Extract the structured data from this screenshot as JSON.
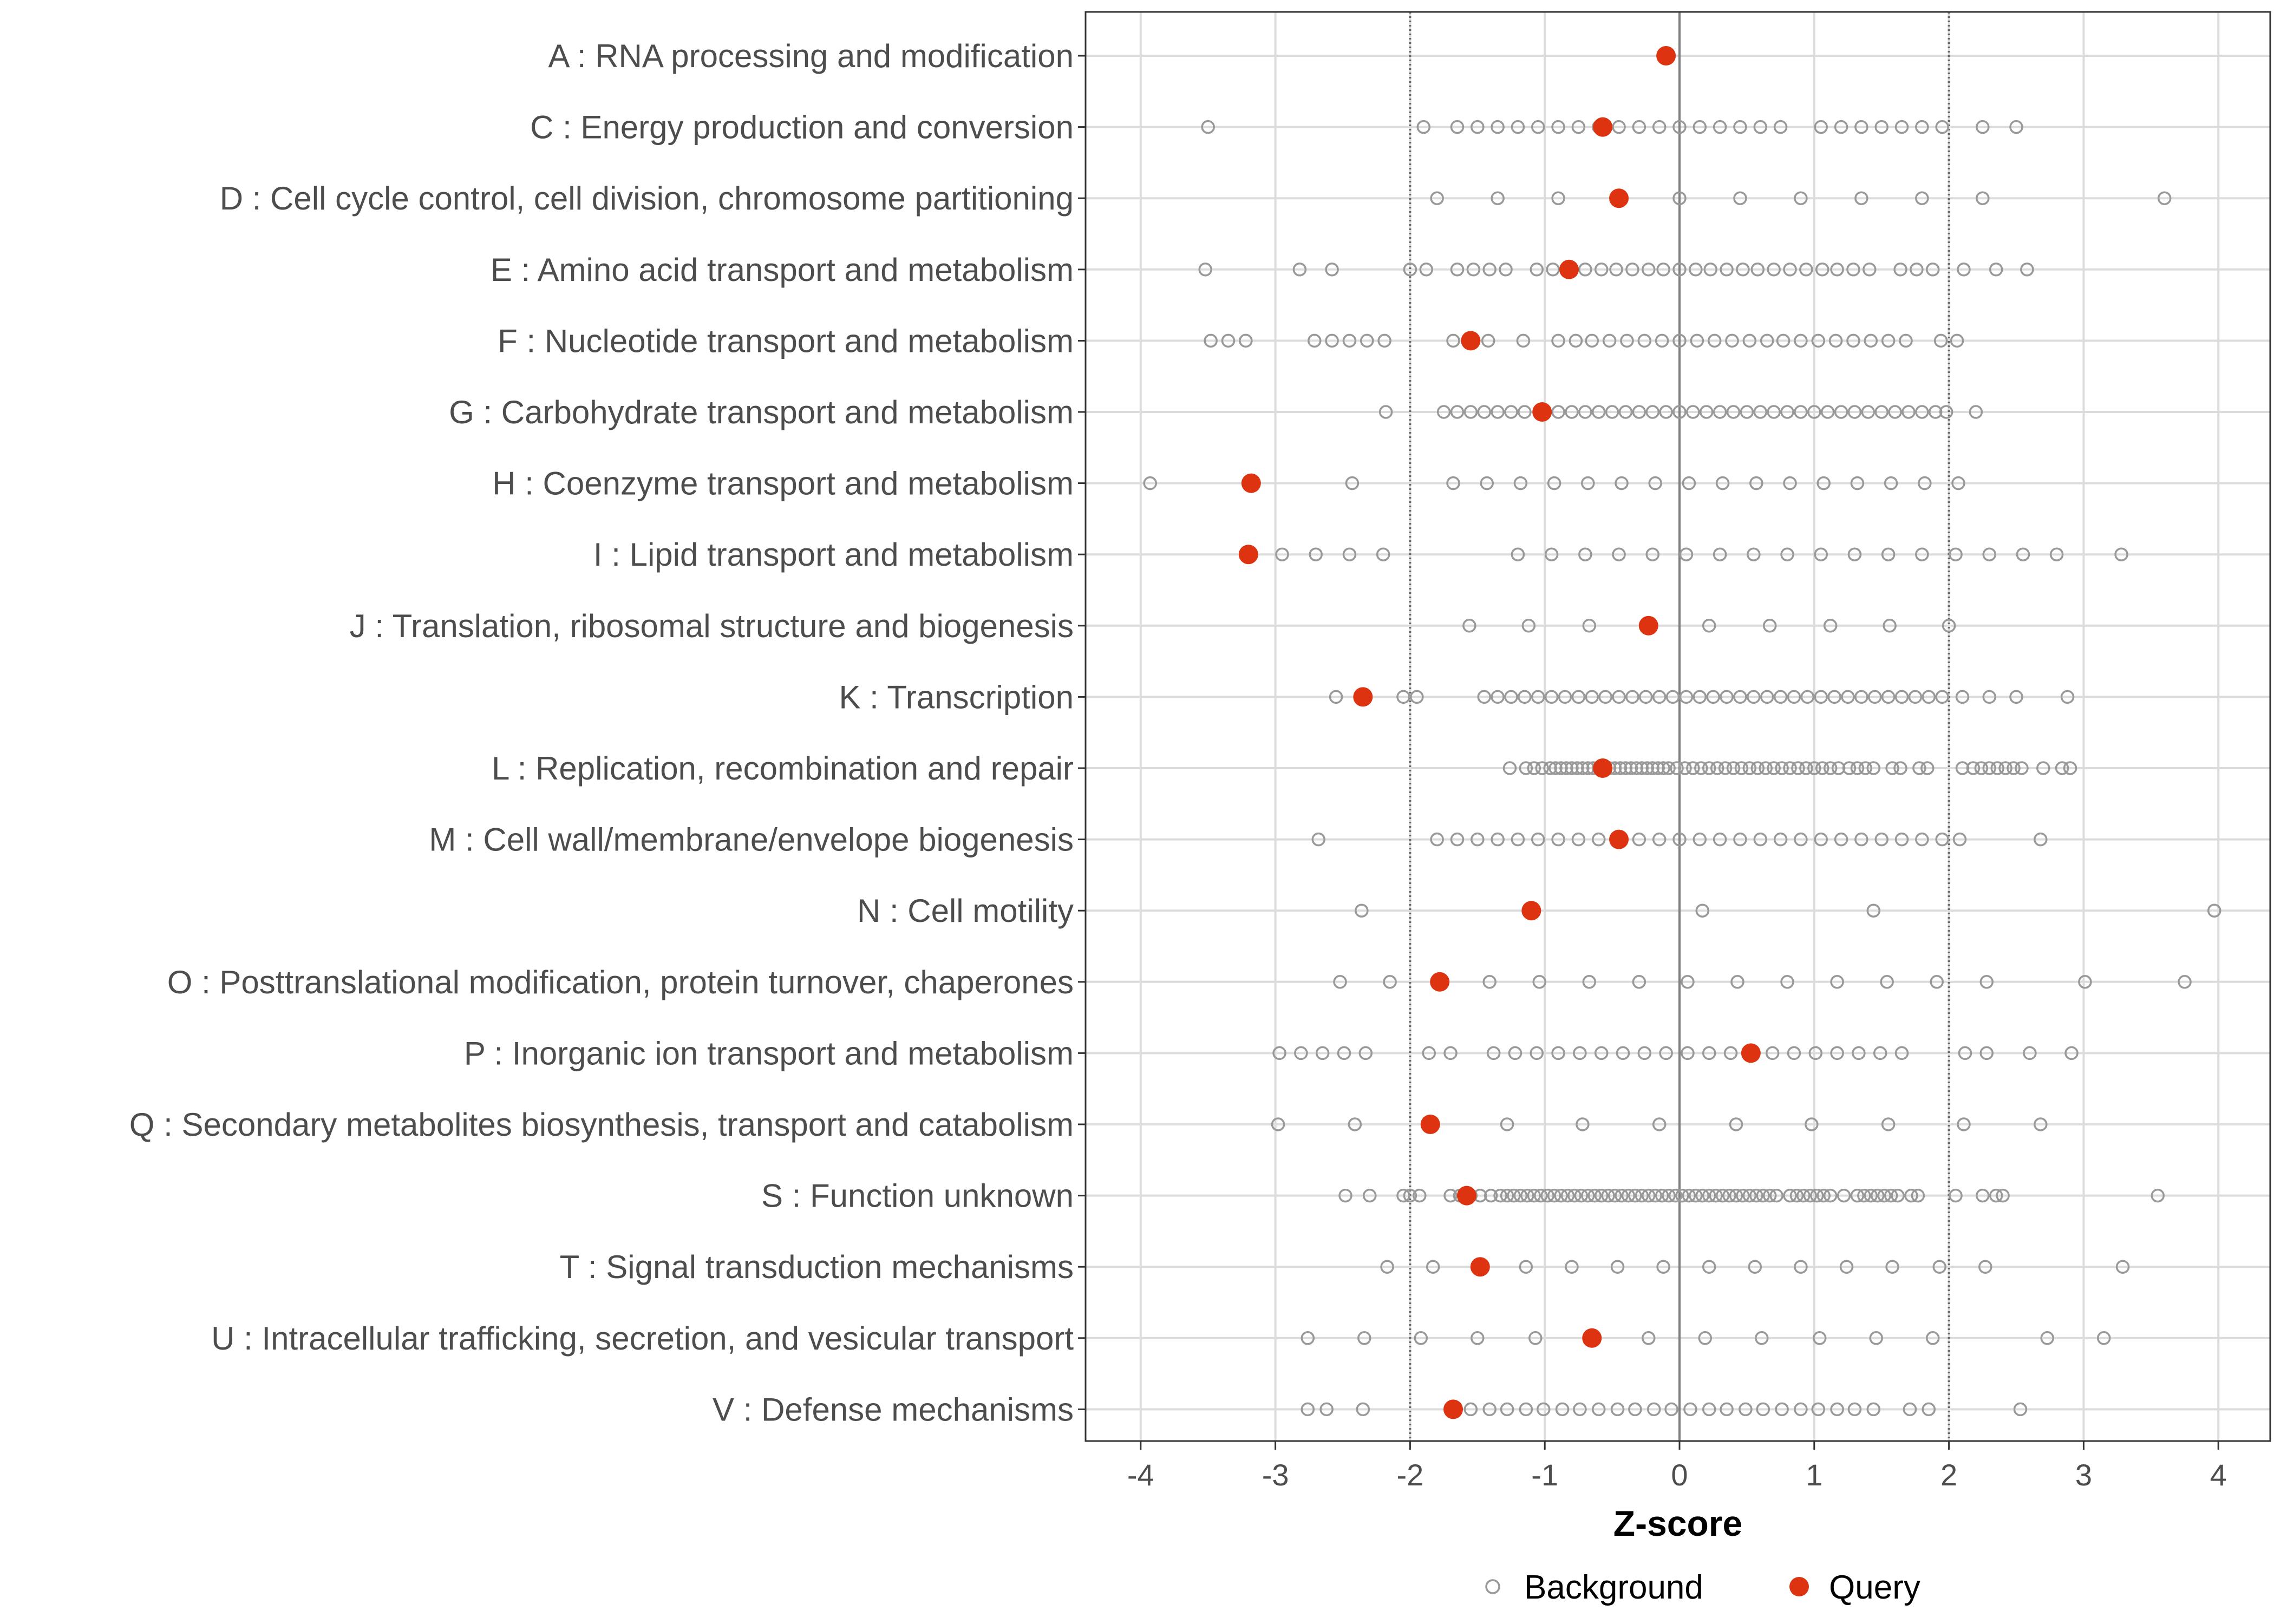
{
  "chart_data": {
    "type": "scatter",
    "title": "",
    "xlabel": "Z-score",
    "ylabel": "",
    "xlim": [
      -4.4,
      4.4
    ],
    "xticks": [
      -4,
      -3,
      -2,
      -1,
      0,
      1,
      2,
      3,
      4
    ],
    "xtick_labels": [
      "-4",
      "-3",
      "-2",
      "-1",
      "0",
      "1",
      "2",
      "3",
      "4"
    ],
    "reference_lines": [
      -2,
      0,
      2
    ],
    "grid": true,
    "legend_position": "bottom",
    "colors": {
      "background_point": "#999999",
      "query_point": "#dd3311",
      "grid": "#dcdcdc",
      "zero_line": "#7f7f7f",
      "dotted_line": "#666666",
      "panel_border": "#333333"
    },
    "series": [
      {
        "name": "Background",
        "marker": "open-circle"
      },
      {
        "name": "Query",
        "marker": "filled-circle"
      }
    ],
    "categories": [
      {
        "label": "A : RNA processing and modification",
        "query": -0.1,
        "background": []
      },
      {
        "label": "C : Energy production and conversion",
        "query": -0.57,
        "background": [
          -3.5,
          -1.9,
          -1.65,
          -1.5,
          -1.35,
          -1.2,
          -1.05,
          -0.9,
          -0.75,
          -0.6,
          -0.45,
          -0.3,
          -0.15,
          0,
          0.15,
          0.3,
          0.45,
          0.6,
          0.75,
          1.05,
          1.2,
          1.35,
          1.5,
          1.65,
          1.8,
          1.95,
          2.25,
          2.5
        ]
      },
      {
        "label": "D : Cell cycle control, cell division, chromosome partitioning",
        "query": -0.45,
        "background": [
          -1.8,
          -1.35,
          -0.9,
          0,
          0.45,
          0.9,
          1.35,
          1.8,
          2.25,
          3.6
        ]
      },
      {
        "label": "E : Amino acid transport and metabolism",
        "query": -0.82,
        "background": [
          -3.52,
          -2.82,
          -2.58,
          -2.0,
          -1.88,
          -1.65,
          -1.53,
          -1.41,
          -1.29,
          -1.06,
          -0.94,
          -0.7,
          -0.58,
          -0.47,
          -0.35,
          -0.23,
          -0.12,
          0,
          0.12,
          0.23,
          0.35,
          0.47,
          0.58,
          0.7,
          0.82,
          0.94,
          1.06,
          1.17,
          1.29,
          1.41,
          1.64,
          1.76,
          1.88,
          2.11,
          2.35,
          2.58
        ]
      },
      {
        "label": "F : Nucleotide transport and metabolism",
        "query": -1.55,
        "background": [
          -3.48,
          -3.35,
          -3.22,
          -2.71,
          -2.58,
          -2.45,
          -2.32,
          -2.19,
          -1.68,
          -1.42,
          -1.16,
          -0.9,
          -0.77,
          -0.65,
          -0.52,
          -0.39,
          -0.26,
          -0.13,
          0,
          0.13,
          0.26,
          0.39,
          0.52,
          0.65,
          0.77,
          0.9,
          1.03,
          1.16,
          1.29,
          1.42,
          1.55,
          1.68,
          1.94,
          2.06
        ]
      },
      {
        "label": "G : Carbohydrate transport and metabolism",
        "query": -1.02,
        "background": [
          -2.18,
          -1.75,
          -1.65,
          -1.55,
          -1.45,
          -1.35,
          -1.25,
          -1.15,
          -0.9,
          -0.8,
          -0.7,
          -0.6,
          -0.5,
          -0.4,
          -0.3,
          -0.2,
          -0.1,
          0,
          0.1,
          0.2,
          0.3,
          0.4,
          0.5,
          0.6,
          0.7,
          0.8,
          0.9,
          1.0,
          1.1,
          1.2,
          1.3,
          1.4,
          1.5,
          1.6,
          1.7,
          1.8,
          1.9,
          1.98,
          2.2
        ]
      },
      {
        "label": "H : Coenzyme transport and metabolism",
        "query": -3.18,
        "background": [
          -3.93,
          -2.43,
          -1.68,
          -1.43,
          -1.18,
          -0.93,
          -0.68,
          -0.43,
          -0.18,
          0.07,
          0.32,
          0.57,
          0.82,
          1.07,
          1.32,
          1.57,
          1.82,
          2.07
        ]
      },
      {
        "label": "I : Lipid transport and metabolism",
        "query": -3.2,
        "background": [
          -2.95,
          -2.7,
          -2.45,
          -2.2,
          -1.2,
          -0.95,
          -0.7,
          -0.45,
          -0.2,
          0.05,
          0.3,
          0.55,
          0.8,
          1.05,
          1.3,
          1.55,
          1.8,
          2.05,
          2.3,
          2.55,
          2.8,
          3.28
        ]
      },
      {
        "label": "J : Translation, ribosomal structure and biogenesis",
        "query": -0.23,
        "background": [
          -1.56,
          -1.12,
          -0.67,
          0.22,
          0.67,
          1.12,
          1.56,
          2.0
        ]
      },
      {
        "label": "K : Transcription",
        "query": -2.35,
        "background": [
          -2.55,
          -2.05,
          -1.95,
          -1.45,
          -1.35,
          -1.25,
          -1.15,
          -1.05,
          -0.95,
          -0.85,
          -0.75,
          -0.65,
          -0.55,
          -0.45,
          -0.35,
          -0.25,
          -0.15,
          -0.05,
          0.05,
          0.15,
          0.25,
          0.35,
          0.45,
          0.55,
          0.65,
          0.75,
          0.85,
          0.95,
          1.05,
          1.15,
          1.25,
          1.35,
          1.45,
          1.55,
          1.65,
          1.75,
          1.85,
          1.95,
          2.1,
          2.3,
          2.5,
          2.88
        ]
      },
      {
        "label": "L : Replication, recombination and repair",
        "query": -0.57,
        "background": [
          -1.26,
          -1.14,
          -1.08,
          -1.02,
          -0.96,
          -0.92,
          -0.88,
          -0.84,
          -0.8,
          -0.76,
          -0.72,
          -0.68,
          -0.64,
          -0.6,
          -0.56,
          -0.52,
          -0.48,
          -0.44,
          -0.4,
          -0.36,
          -0.32,
          -0.28,
          -0.24,
          -0.2,
          -0.16,
          -0.12,
          -0.08,
          -0.02,
          0.04,
          0.1,
          0.16,
          0.22,
          0.28,
          0.34,
          0.4,
          0.46,
          0.52,
          0.58,
          0.64,
          0.7,
          0.76,
          0.82,
          0.88,
          0.94,
          1.0,
          1.06,
          1.12,
          1.18,
          1.26,
          1.32,
          1.38,
          1.44,
          1.58,
          1.64,
          1.78,
          1.84,
          2.1,
          2.18,
          2.24,
          2.3,
          2.36,
          2.42,
          2.48,
          2.54,
          2.7,
          2.84,
          2.9
        ]
      },
      {
        "label": "M : Cell wall/membrane/envelope biogenesis",
        "query": -0.45,
        "background": [
          -2.68,
          -1.8,
          -1.65,
          -1.5,
          -1.35,
          -1.2,
          -1.05,
          -0.9,
          -0.75,
          -0.6,
          -0.3,
          -0.15,
          0,
          0.15,
          0.3,
          0.45,
          0.6,
          0.75,
          0.9,
          1.05,
          1.2,
          1.35,
          1.5,
          1.65,
          1.8,
          1.95,
          2.08,
          2.68
        ]
      },
      {
        "label": "N : Cell motility",
        "query": -1.1,
        "background": [
          -2.36,
          0.17,
          1.44,
          3.97
        ]
      },
      {
        "label": "O : Posttranslational modification, protein turnover, chaperones",
        "query": -1.78,
        "background": [
          -2.52,
          -2.15,
          -1.41,
          -1.04,
          -0.67,
          -0.3,
          0.06,
          0.43,
          0.8,
          1.17,
          1.54,
          1.91,
          2.28,
          3.01,
          3.75
        ]
      },
      {
        "label": "P : Inorganic ion transport and metabolism",
        "query": 0.53,
        "background": [
          -2.97,
          -2.81,
          -2.65,
          -2.49,
          -2.33,
          -1.86,
          -1.7,
          -1.38,
          -1.22,
          -1.06,
          -0.9,
          -0.74,
          -0.58,
          -0.42,
          -0.26,
          -0.1,
          0.06,
          0.22,
          0.38,
          0.69,
          0.85,
          1.01,
          1.17,
          1.33,
          1.49,
          1.65,
          2.12,
          2.28,
          2.6,
          2.91
        ]
      },
      {
        "label": "Q : Secondary metabolites biosynthesis, transport and catabolism",
        "query": -1.85,
        "background": [
          -2.98,
          -2.41,
          -1.28,
          -0.72,
          -0.15,
          0.42,
          0.98,
          1.55,
          2.11,
          2.68
        ]
      },
      {
        "label": "S : Function unknown",
        "query": -1.58,
        "background": [
          -2.48,
          -2.3,
          -2.05,
          -2.0,
          -1.93,
          -1.7,
          -1.63,
          -1.55,
          -1.48,
          -1.4,
          -1.33,
          -1.28,
          -1.23,
          -1.18,
          -1.13,
          -1.08,
          -1.03,
          -0.98,
          -0.93,
          -0.88,
          -0.83,
          -0.78,
          -0.73,
          -0.68,
          -0.63,
          -0.58,
          -0.53,
          -0.48,
          -0.43,
          -0.38,
          -0.33,
          -0.28,
          -0.23,
          -0.18,
          -0.13,
          -0.08,
          -0.03,
          0.02,
          0.07,
          0.12,
          0.17,
          0.22,
          0.27,
          0.32,
          0.37,
          0.42,
          0.47,
          0.52,
          0.57,
          0.62,
          0.67,
          0.72,
          0.82,
          0.87,
          0.92,
          0.97,
          1.02,
          1.07,
          1.12,
          1.22,
          1.32,
          1.37,
          1.42,
          1.47,
          1.52,
          1.57,
          1.62,
          1.72,
          1.77,
          2.05,
          2.25,
          2.35,
          2.4,
          3.55
        ]
      },
      {
        "label": "T : Signal transduction mechanisms",
        "query": -1.48,
        "background": [
          -2.17,
          -1.83,
          -1.14,
          -0.8,
          -0.46,
          -0.12,
          0.22,
          0.56,
          0.9,
          1.24,
          1.58,
          1.93,
          2.27,
          3.29
        ]
      },
      {
        "label": "U : Intracellular trafficking, secretion, and vesicular transport",
        "query": -0.65,
        "background": [
          -2.76,
          -2.34,
          -1.92,
          -1.5,
          -1.07,
          -0.23,
          0.19,
          0.61,
          1.04,
          1.46,
          1.88,
          2.73,
          3.15
        ]
      },
      {
        "label": "V : Defense mechanisms",
        "query": -1.68,
        "background": [
          -2.76,
          -2.62,
          -2.35,
          -1.55,
          -1.41,
          -1.28,
          -1.14,
          -1.01,
          -0.87,
          -0.74,
          -0.6,
          -0.46,
          -0.33,
          -0.19,
          -0.06,
          0.08,
          0.22,
          0.35,
          0.49,
          0.62,
          0.76,
          0.9,
          1.03,
          1.17,
          1.3,
          1.44,
          1.71,
          1.85,
          2.53
        ]
      }
    ]
  }
}
